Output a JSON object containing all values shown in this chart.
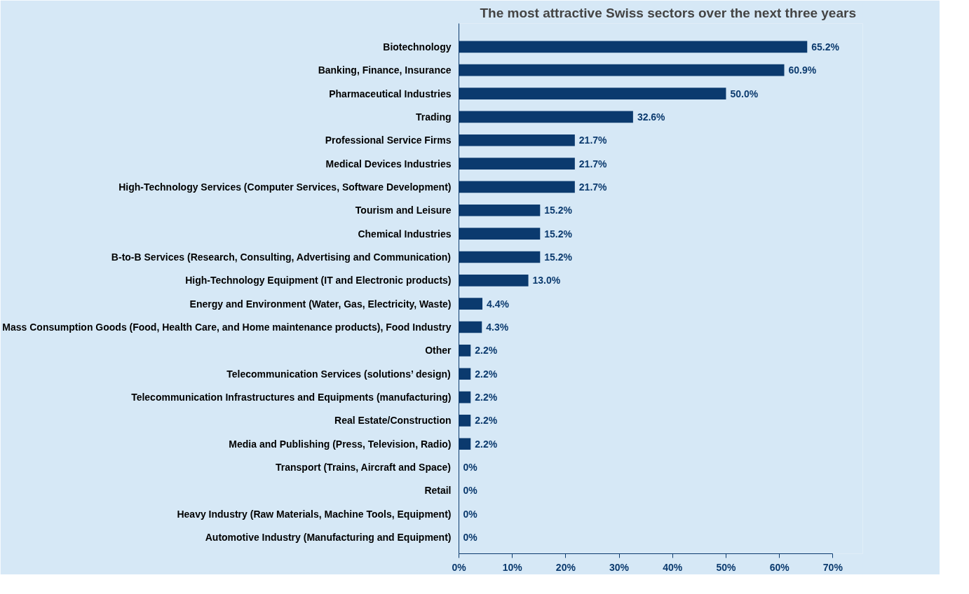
{
  "chart_data": {
    "type": "bar",
    "orientation": "horizontal",
    "title": "The most attractive Swiss sectors over the next three years",
    "categories": [
      "Biotechnology",
      "Banking, Finance, Insurance",
      "Pharmaceutical Industries",
      "Trading",
      "Professional Service Firms",
      "Medical Devices Industries",
      "High-Technology Services (Computer Services, Software Development)",
      "Tourism and Leisure",
      "Chemical Industries",
      "B-to-B Services (Research, Consulting, Advertising and Communication)",
      "High-Technology Equipment (IT and Electronic products)",
      "Energy and Environment (Water, Gas, Electricity, Waste)",
      "Mass Consumption Goods (Food, Health Care, and Home maintenance products), Food Industry",
      "Other",
      "Telecommunication Services (solutions’ design)",
      "Telecommunication Infrastructures and Equipments (manufacturing)",
      "Real Estate/Construction",
      "Media and Publishing (Press, Television, Radio)",
      "Transport (Trains, Aircraft and Space)",
      "Retail",
      "Heavy Industry (Raw Materials, Machine Tools, Equipment)",
      "Automotive Industry (Manufacturing and Equipment)"
    ],
    "values": [
      65.2,
      60.9,
      50.0,
      32.6,
      21.7,
      21.7,
      21.7,
      15.2,
      15.2,
      15.2,
      13.0,
      4.4,
      4.3,
      2.2,
      2.2,
      2.2,
      2.2,
      2.2,
      0,
      0,
      0,
      0
    ],
    "value_labels": [
      "65.2%",
      "60.9%",
      "50.0%",
      "32.6%",
      "21.7%",
      "21.7%",
      "21.7%",
      "15.2%",
      "15.2%",
      "15.2%",
      "13.0%",
      "4.4%",
      "4.3%",
      "2.2%",
      "2.2%",
      "2.2%",
      "2.2%",
      "2.2%",
      "0%",
      "0%",
      "0%",
      "0%"
    ],
    "color": "#0b3a6e",
    "xlim": [
      0,
      70
    ],
    "xticks": [
      {
        "value": 0,
        "label": "0%"
      },
      {
        "value": 10,
        "label": "10%"
      },
      {
        "value": 20,
        "label": "20%"
      },
      {
        "value": 30,
        "label": "30%"
      },
      {
        "value": 40,
        "label": "40%"
      },
      {
        "value": 50,
        "label": "50%"
      },
      {
        "value": 60,
        "label": "60%"
      },
      {
        "value": 70,
        "label": "70%"
      }
    ],
    "grid": false
  }
}
